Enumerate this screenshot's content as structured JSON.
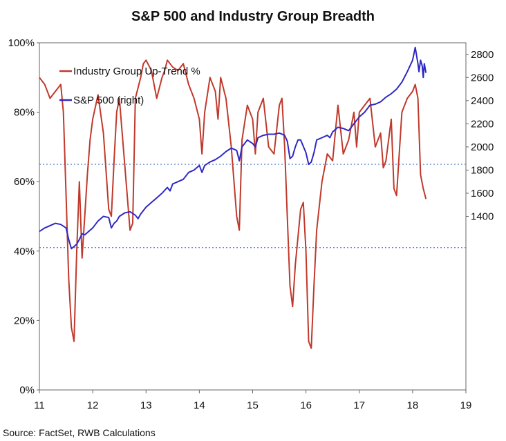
{
  "chart_data": {
    "type": "line",
    "title": "S&P 500 and Industry Group Breadth",
    "source": "Source: FactSet, RWB Calculations",
    "x_ticks": [
      "11",
      "12",
      "13",
      "14",
      "15",
      "16",
      "17",
      "18",
      "19"
    ],
    "xlim": [
      2011,
      2019
    ],
    "left_axis": {
      "ticks": [
        "0%",
        "20%",
        "40%",
        "60%",
        "80%",
        "100%"
      ],
      "ylim": [
        0,
        100
      ]
    },
    "right_axis": {
      "ticks": [
        "1400",
        "1600",
        "1800",
        "2000",
        "2200",
        "2400",
        "2600",
        "2800"
      ],
      "ylim": [
        -100,
        2900
      ]
    },
    "reference_lines": [
      65,
      41
    ],
    "grid": false,
    "legend_position": "top-left",
    "series": [
      {
        "name": "Industry Group Up-Trend %",
        "axis": "left",
        "color": "#c0392b",
        "x": [
          2011.0,
          2011.1,
          2011.2,
          2011.3,
          2011.4,
          2011.45,
          2011.5,
          2011.55,
          2011.6,
          2011.65,
          2011.7,
          2011.75,
          2011.8,
          2011.85,
          2011.9,
          2011.95,
          2012.0,
          2012.1,
          2012.2,
          2012.3,
          2012.35,
          2012.4,
          2012.45,
          2012.5,
          2012.6,
          2012.7,
          2012.75,
          2012.8,
          2012.9,
          2012.95,
          2013.0,
          2013.1,
          2013.2,
          2013.3,
          2013.35,
          2013.4,
          2013.5,
          2013.6,
          2013.7,
          2013.8,
          2013.9,
          2014.0,
          2014.05,
          2014.1,
          2014.2,
          2014.3,
          2014.35,
          2014.4,
          2014.5,
          2014.6,
          2014.7,
          2014.75,
          2014.8,
          2014.9,
          2015.0,
          2015.05,
          2015.1,
          2015.2,
          2015.3,
          2015.4,
          2015.5,
          2015.55,
          2015.6,
          2015.65,
          2015.7,
          2015.75,
          2015.8,
          2015.9,
          2015.95,
          2016.0,
          2016.05,
          2016.1,
          2016.15,
          2016.2,
          2016.3,
          2016.4,
          2016.5,
          2016.55,
          2016.6,
          2016.7,
          2016.8,
          2016.9,
          2016.95,
          2017.0,
          2017.1,
          2017.2,
          2017.3,
          2017.4,
          2017.45,
          2017.5,
          2017.6,
          2017.65,
          2017.7,
          2017.8,
          2017.9,
          2018.0,
          2018.05,
          2018.1,
          2018.15,
          2018.2,
          2018.25
        ],
        "values": [
          90,
          88,
          84,
          86,
          88,
          80,
          56,
          32,
          18,
          14,
          40,
          60,
          38,
          50,
          62,
          72,
          78,
          85,
          74,
          52,
          50,
          66,
          80,
          84,
          65,
          46,
          48,
          84,
          90,
          94,
          95,
          92,
          84,
          90,
          92,
          95,
          93,
          92,
          94,
          88,
          84,
          78,
          68,
          80,
          90,
          86,
          78,
          90,
          84,
          70,
          50,
          46,
          72,
          82,
          78,
          68,
          80,
          84,
          70,
          68,
          82,
          84,
          70,
          50,
          30,
          24,
          36,
          52,
          54,
          40,
          14,
          12,
          30,
          46,
          60,
          68,
          66,
          74,
          82,
          68,
          72,
          80,
          70,
          80,
          82,
          84,
          70,
          74,
          64,
          66,
          78,
          58,
          56,
          80,
          84,
          86,
          88,
          84,
          62,
          58,
          55
        ]
      },
      {
        "name": "S&P 500 (right)",
        "axis": "right",
        "color": "#2f28c4",
        "x": [
          2011.0,
          2011.1,
          2011.2,
          2011.3,
          2011.4,
          2011.5,
          2011.55,
          2011.6,
          2011.65,
          2011.7,
          2011.75,
          2011.8,
          2011.85,
          2011.9,
          2012.0,
          2012.1,
          2012.2,
          2012.3,
          2012.35,
          2012.4,
          2012.45,
          2012.5,
          2012.6,
          2012.7,
          2012.8,
          2012.85,
          2012.9,
          2013.0,
          2013.1,
          2013.2,
          2013.3,
          2013.4,
          2013.45,
          2013.5,
          2013.6,
          2013.7,
          2013.8,
          2013.9,
          2014.0,
          2014.05,
          2014.1,
          2014.2,
          2014.3,
          2014.4,
          2014.5,
          2014.6,
          2014.7,
          2014.75,
          2014.8,
          2014.9,
          2015.0,
          2015.05,
          2015.1,
          2015.2,
          2015.3,
          2015.4,
          2015.5,
          2015.6,
          2015.65,
          2015.7,
          2015.75,
          2015.8,
          2015.85,
          2015.9,
          2016.0,
          2016.05,
          2016.1,
          2016.15,
          2016.2,
          2016.3,
          2016.4,
          2016.45,
          2016.5,
          2016.6,
          2016.7,
          2016.8,
          2016.9,
          2017.0,
          2017.1,
          2017.2,
          2017.3,
          2017.4,
          2017.5,
          2017.6,
          2017.7,
          2017.8,
          2017.9,
          2018.0,
          2018.05,
          2018.1,
          2018.12,
          2018.15,
          2018.18,
          2018.2,
          2018.22,
          2018.25
        ],
        "values": [
          1270,
          1300,
          1320,
          1340,
          1330,
          1300,
          1200,
          1120,
          1140,
          1160,
          1200,
          1250,
          1240,
          1260,
          1300,
          1360,
          1400,
          1390,
          1300,
          1340,
          1360,
          1400,
          1430,
          1440,
          1410,
          1380,
          1420,
          1480,
          1520,
          1560,
          1600,
          1650,
          1620,
          1680,
          1700,
          1720,
          1780,
          1800,
          1840,
          1780,
          1840,
          1870,
          1890,
          1920,
          1960,
          1990,
          1970,
          1880,
          2000,
          2060,
          2030,
          2000,
          2080,
          2100,
          2110,
          2110,
          2120,
          2100,
          2050,
          1900,
          1920,
          2000,
          2060,
          2060,
          1950,
          1850,
          1870,
          1950,
          2060,
          2080,
          2100,
          2080,
          2130,
          2170,
          2160,
          2140,
          2200,
          2260,
          2300,
          2360,
          2370,
          2390,
          2430,
          2460,
          2500,
          2560,
          2650,
          2750,
          2860,
          2720,
          2650,
          2750,
          2700,
          2600,
          2720,
          2640
        ]
      }
    ]
  }
}
